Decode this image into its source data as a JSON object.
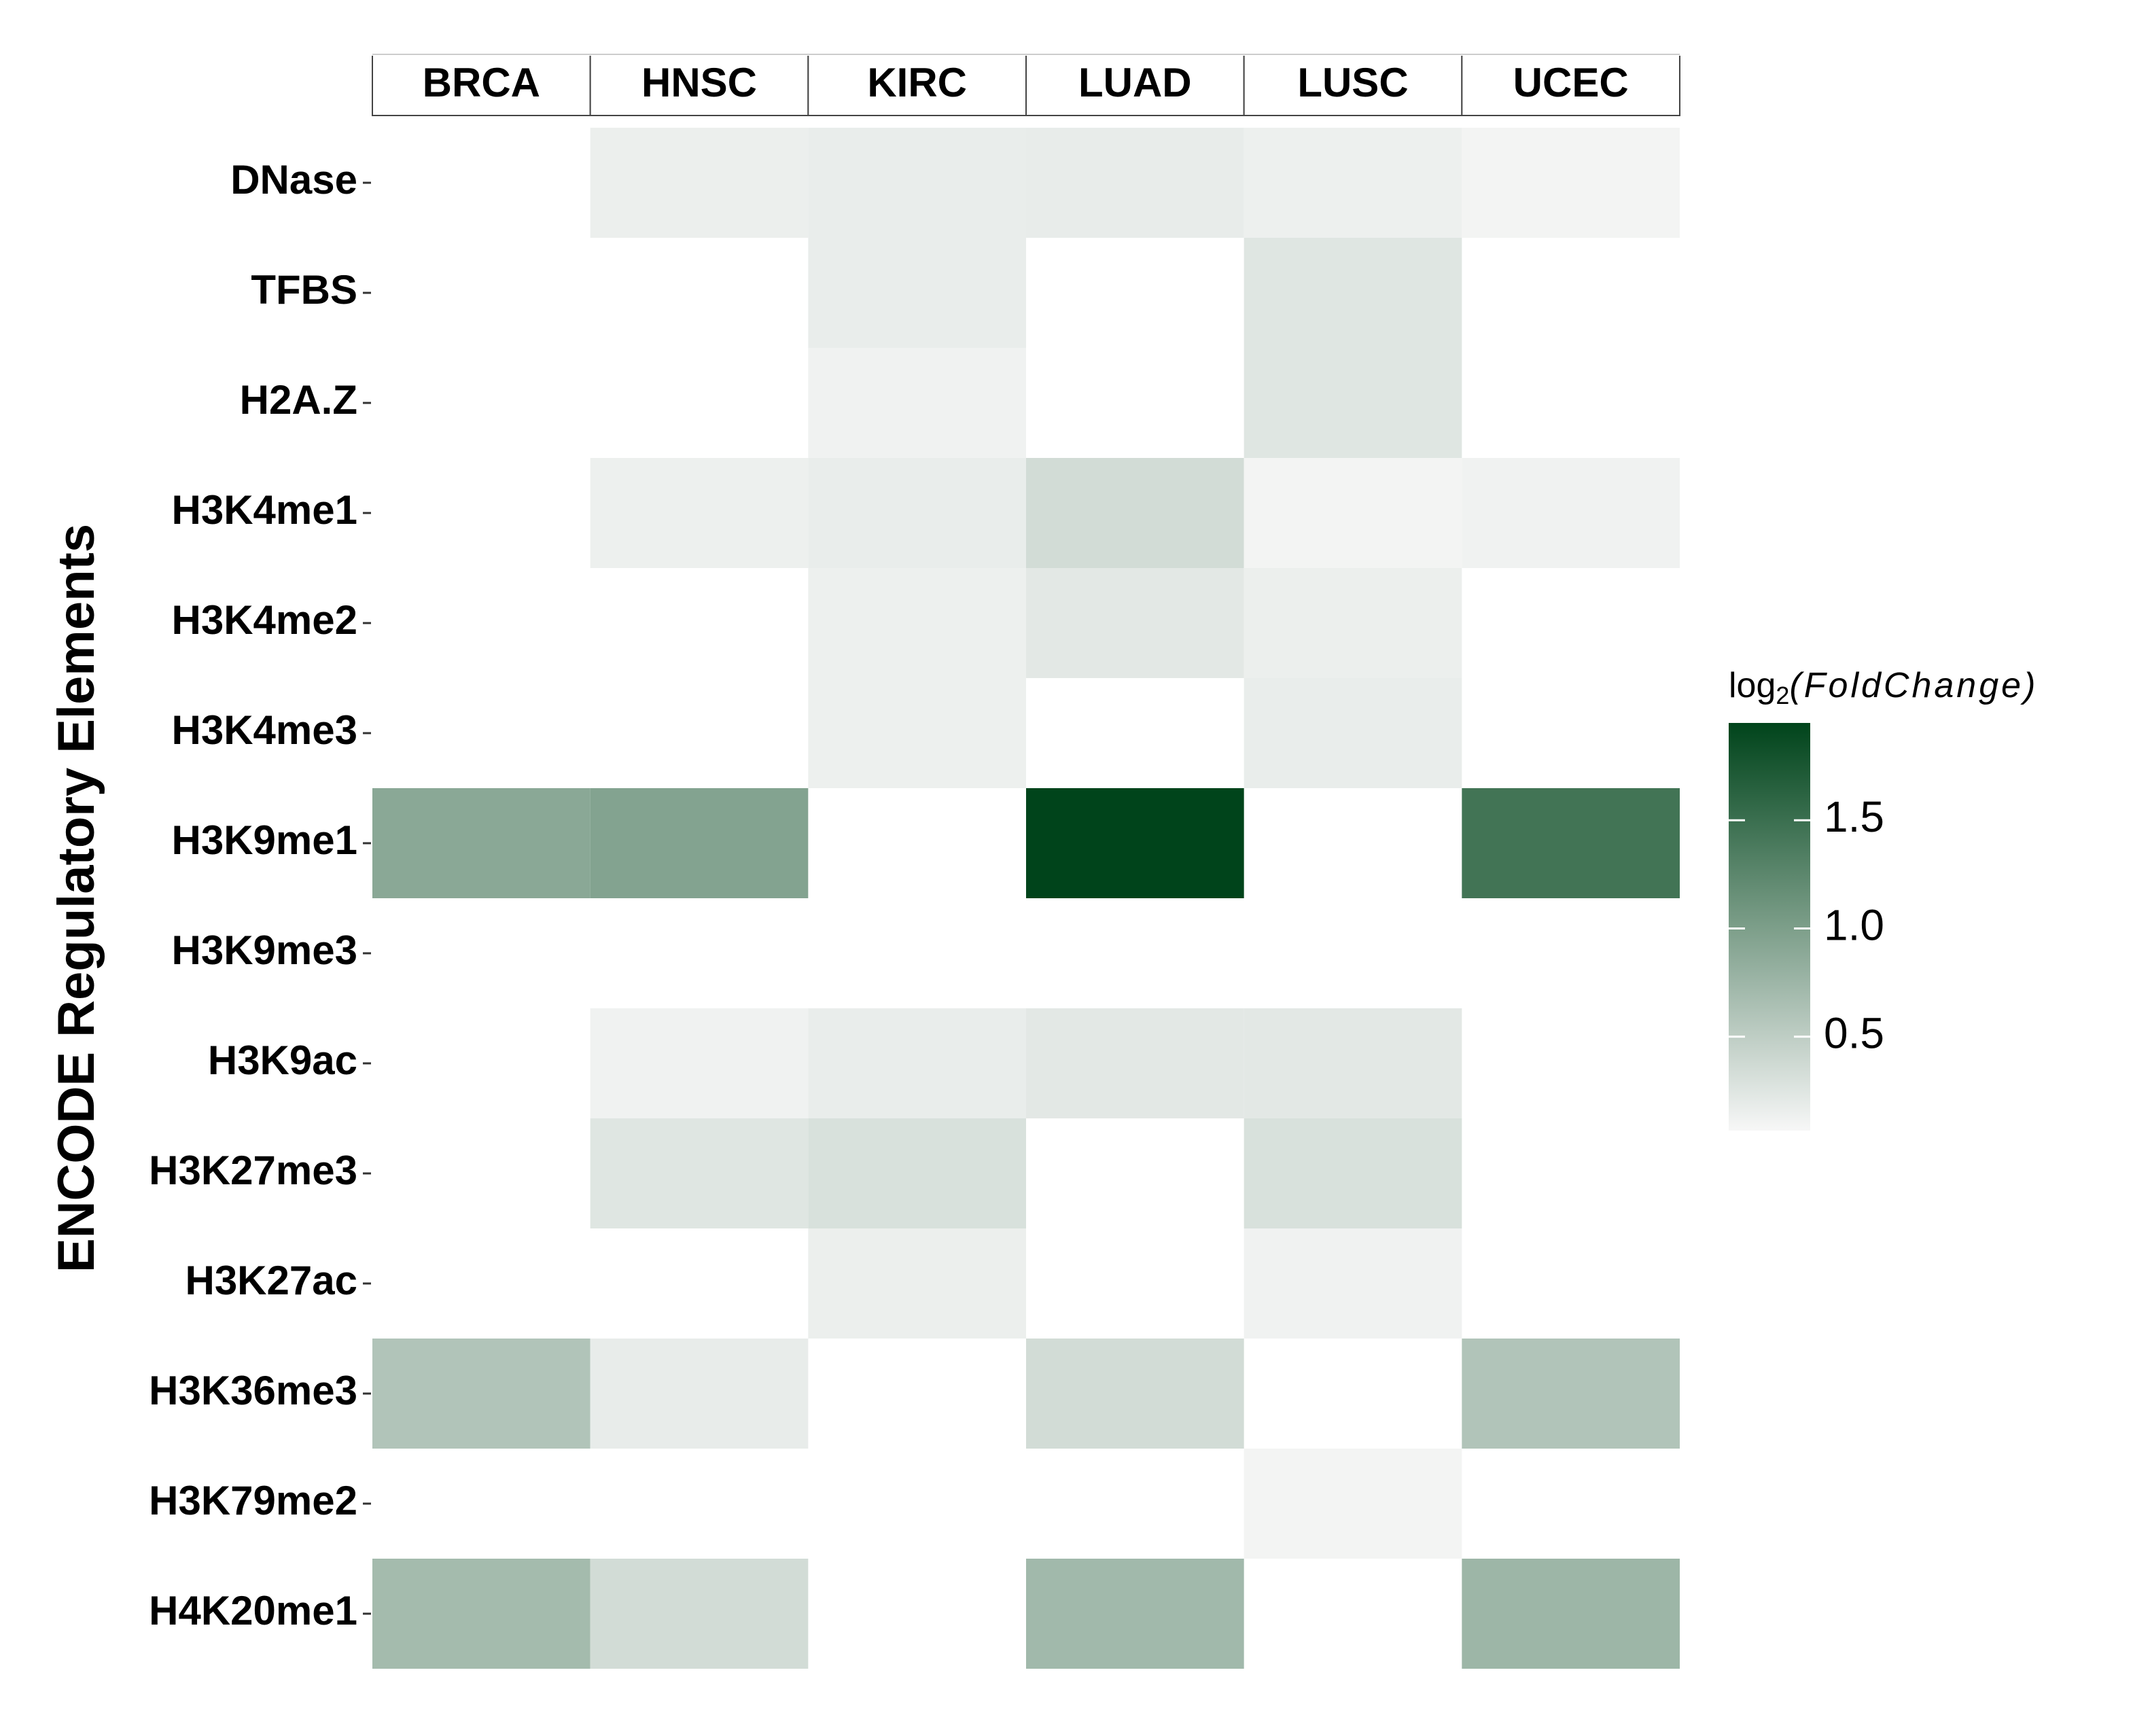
{
  "chart_data": {
    "type": "heatmap",
    "y_label": "ENCODE Regulatory Elements",
    "columns": [
      "BRCA",
      "HNSC",
      "KIRC",
      "LUAD",
      "LUSC",
      "UCEC"
    ],
    "rows": [
      "DNase",
      "TFBS",
      "H2A.Z",
      "H3K4me1",
      "H3K4me2",
      "H3K4me3",
      "H3K9me1",
      "H3K9me3",
      "H3K9ac",
      "H3K27me3",
      "H3K27ac",
      "H3K36me3",
      "H3K79me2",
      "H4K20me1"
    ],
    "values": [
      [
        null,
        0.15,
        0.17,
        0.18,
        0.14,
        0.1
      ],
      [
        null,
        null,
        0.17,
        null,
        0.25,
        null
      ],
      [
        null,
        null,
        0.12,
        null,
        0.25,
        null
      ],
      [
        null,
        0.14,
        0.17,
        0.35,
        0.1,
        0.12
      ],
      [
        null,
        null,
        0.14,
        0.22,
        0.15,
        null
      ],
      [
        null,
        null,
        0.14,
        null,
        0.17,
        null
      ],
      [
        0.9,
        0.95,
        null,
        1.95,
        null,
        1.45
      ],
      [
        null,
        null,
        null,
        null,
        null,
        null
      ],
      [
        null,
        0.12,
        0.17,
        0.22,
        0.22,
        null
      ],
      [
        null,
        0.25,
        0.3,
        null,
        0.3,
        null
      ],
      [
        null,
        null,
        0.15,
        null,
        0.12,
        null
      ],
      [
        0.6,
        0.18,
        null,
        0.35,
        null,
        0.6
      ],
      [
        null,
        null,
        null,
        null,
        0.1,
        null
      ],
      [
        0.7,
        0.35,
        null,
        0.72,
        null,
        0.75
      ]
    ],
    "legend_title": {
      "base": "log",
      "sub": "2",
      "body": "(FoldChange)"
    },
    "colorbar": {
      "lim": [
        0.066,
        1.95
      ],
      "ticks": [
        0.5,
        1,
        1.5
      ],
      "low_color": "#f7f7f7",
      "high_color": "#00441b"
    }
  }
}
